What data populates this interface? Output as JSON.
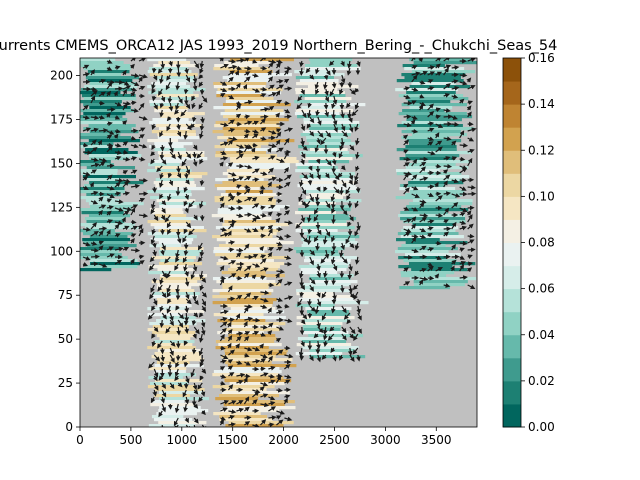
{
  "chart_data": {
    "type": "heatmap",
    "title": "urrents CMEMS_ORCA12 JAS 1993_2019 Northern_Bering_-_Chukchi_Seas_54",
    "xlabel": "",
    "ylabel": "",
    "xlim": [
      0,
      3900
    ],
    "ylim": [
      0,
      210
    ],
    "x_ticks": [
      0,
      500,
      1000,
      1500,
      2000,
      2500,
      3000,
      3500
    ],
    "y_ticks": [
      0,
      25,
      50,
      75,
      100,
      125,
      150,
      175,
      200
    ],
    "background_color": "#c0c0c0",
    "arrow_color": "#1a1a1a",
    "colorbar": {
      "vmin": 0.0,
      "vmax": 0.16,
      "ticks": [
        "0.00",
        "0.02",
        "0.04",
        "0.06",
        "0.08",
        "0.10",
        "0.12",
        "0.14",
        "0.16"
      ],
      "colors": [
        "#01665e",
        "#1d8073",
        "#3f9b8e",
        "#66b9ab",
        "#90d2c4",
        "#b5e2d9",
        "#d6ede9",
        "#eaf2f1",
        "#f4f0e4",
        "#f5e6c3",
        "#ecd7a3",
        "#e0be7a",
        "#d2a24f",
        "#bf8432",
        "#a5661b",
        "#8c510a"
      ]
    },
    "current_bands": [
      {
        "x_range": [
          0,
          600
        ],
        "y_range": [
          90,
          210
        ],
        "level": 0.03
      },
      {
        "x_range": [
          700,
          1250
        ],
        "y_range": [
          0,
          210
        ],
        "level": 0.08
      },
      {
        "x_range": [
          1350,
          2100
        ],
        "y_range": [
          0,
          210
        ],
        "level": 0.1
      },
      {
        "x_range": [
          2150,
          2800
        ],
        "y_range": [
          40,
          210
        ],
        "level": 0.06
      },
      {
        "x_range": [
          3150,
          3900
        ],
        "y_range": [
          80,
          210
        ],
        "level": 0.04
      }
    ]
  }
}
